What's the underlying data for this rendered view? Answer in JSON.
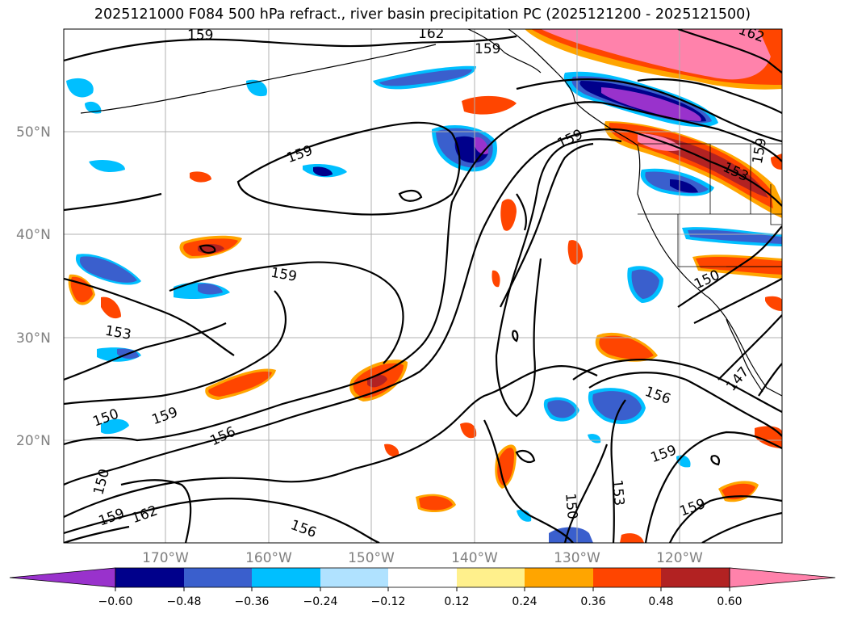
{
  "title": "2025121000 F084 500 hPa refract., river basin precipitation PC (2025121200 - 2025121500)",
  "map": {
    "lat_labels": [
      "50°N",
      "40°N",
      "30°N",
      "20°N"
    ],
    "lon_labels": [
      "170°W",
      "160°W",
      "150°W",
      "140°W",
      "130°W",
      "120°W"
    ],
    "contour_labels": [
      "159",
      "162",
      "159",
      "162",
      "159",
      "159",
      "153",
      "159",
      "159",
      "153",
      "150",
      "159",
      "156",
      "150",
      "159",
      "162",
      "156",
      "150",
      "153",
      "156",
      "159",
      "159",
      "150",
      "147"
    ]
  },
  "colorbar": {
    "tick_labels": [
      "−0.60",
      "−0.48",
      "−0.36",
      "−0.24",
      "−0.12",
      "0.12",
      "0.24",
      "0.36",
      "0.48",
      "0.60"
    ],
    "colors": [
      "#9932cc",
      "#00008b",
      "#3a5fcd",
      "#00bfff",
      "#b0e2ff",
      "#ffffff",
      "#fff08c",
      "#ffa500",
      "#ff4500",
      "#b22222",
      "#ff82ab",
      "#ff82ab"
    ]
  },
  "palette": {
    "neg_strong": "#9932cc",
    "neg2": "#00008b",
    "neg3": "#3a5fcd",
    "neg4": "#00bfff",
    "neg5": "#b0e2ff",
    "pos1": "#fff08c",
    "pos2": "#ffa500",
    "pos3": "#ff4500",
    "pos4": "#b22222",
    "pos5": "#ff82ab"
  }
}
